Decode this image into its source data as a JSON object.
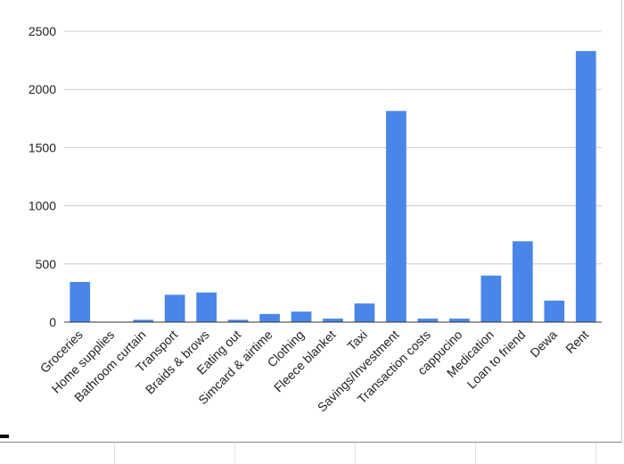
{
  "chart_data": {
    "type": "bar",
    "title": "",
    "xlabel": "",
    "ylabel": "",
    "categories": [
      "Groceries",
      "Home supplies",
      "Bathroom curtain",
      "Transport",
      "Braids & brows",
      "Eating out",
      "Simcard & airtime",
      "Clothing",
      "Fleece blanket",
      "Taxi",
      "Savings/Investment",
      "Transaction costs",
      "cappucino",
      "Medication",
      "Loan to friend",
      "Dewa",
      "Rent"
    ],
    "values": [
      345,
      0,
      20,
      235,
      255,
      20,
      70,
      90,
      30,
      160,
      1815,
      30,
      30,
      400,
      695,
      185,
      2330
    ],
    "ylim": [
      0,
      2500
    ],
    "yticks": [
      0,
      500,
      1000,
      1500,
      2000,
      2500
    ],
    "bar_color": "#4a86e8",
    "grid": true,
    "legend": "none"
  }
}
